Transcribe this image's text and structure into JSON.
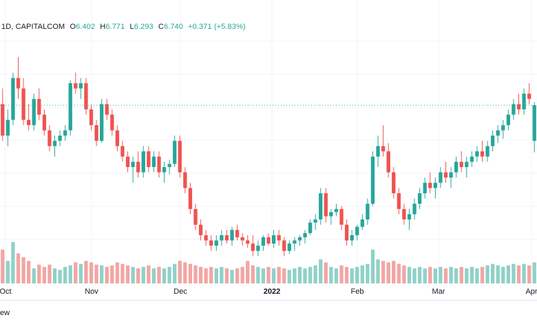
{
  "legend": {
    "symbol": "1D, CAPITALCOM",
    "o_label": "O",
    "o_value": "6.402",
    "h_label": "H",
    "h_value": "6.771",
    "l_label": "L",
    "l_value": "6.293",
    "c_label": "C",
    "c_value": "6.740",
    "change": "+0.371 (+5.83%)"
  },
  "colors": {
    "up": "#26a69a",
    "down": "#ef5350",
    "vol_up": "#8fd1c8",
    "vol_down": "#f2a6a3",
    "dotted_line": "#26a69a",
    "grid": "#f0f3fa"
  },
  "bottom": {
    "link_text": "ew"
  },
  "chart_data": {
    "type": "candlestick",
    "x_tick_labels": [
      "Oct",
      "Nov",
      "Dec",
      "2022",
      "Feb",
      "Mar",
      "Apr"
    ],
    "bold_tick": "2022",
    "last_close": 6.74,
    "candles": [
      [
        6.75,
        6.9,
        6.4,
        6.45,
        45
      ],
      [
        6.45,
        6.7,
        6.35,
        6.6,
        30
      ],
      [
        6.6,
        7.05,
        6.55,
        7.0,
        55
      ],
      [
        7.0,
        7.2,
        6.8,
        6.9,
        40
      ],
      [
        6.9,
        7.0,
        6.55,
        6.6,
        35
      ],
      [
        6.6,
        6.75,
        6.5,
        6.55,
        30
      ],
      [
        6.55,
        6.85,
        6.5,
        6.8,
        20
      ],
      [
        6.8,
        6.9,
        6.6,
        6.65,
        25
      ],
      [
        6.65,
        6.7,
        6.45,
        6.5,
        22
      ],
      [
        6.5,
        6.55,
        6.3,
        6.35,
        25
      ],
      [
        6.35,
        6.45,
        6.25,
        6.4,
        20
      ],
      [
        6.4,
        6.5,
        6.35,
        6.45,
        18
      ],
      [
        6.45,
        6.55,
        6.4,
        6.5,
        22
      ],
      [
        6.5,
        6.98,
        6.45,
        6.95,
        24
      ],
      [
        6.95,
        7.05,
        6.85,
        6.9,
        28
      ],
      [
        6.9,
        7.0,
        6.8,
        6.95,
        26
      ],
      [
        6.95,
        7.0,
        6.65,
        6.7,
        30
      ],
      [
        6.7,
        6.75,
        6.5,
        6.55,
        28
      ],
      [
        6.55,
        6.6,
        6.35,
        6.4,
        25
      ],
      [
        6.4,
        6.8,
        6.38,
        6.75,
        24
      ],
      [
        6.75,
        6.8,
        6.6,
        6.65,
        22
      ],
      [
        6.65,
        6.7,
        6.45,
        6.5,
        24
      ],
      [
        6.5,
        6.55,
        6.3,
        6.35,
        28
      ],
      [
        6.35,
        6.4,
        6.2,
        6.25,
        26
      ],
      [
        6.25,
        6.3,
        6.1,
        6.15,
        24
      ],
      [
        6.15,
        6.25,
        6.0,
        6.2,
        22
      ],
      [
        6.2,
        6.3,
        6.05,
        6.1,
        20
      ],
      [
        6.1,
        6.35,
        6.05,
        6.3,
        22
      ],
      [
        6.3,
        6.35,
        6.1,
        6.15,
        24
      ],
      [
        6.15,
        6.3,
        6.1,
        6.25,
        20
      ],
      [
        6.25,
        6.3,
        6.05,
        6.1,
        22
      ],
      [
        6.1,
        6.2,
        6.0,
        6.15,
        20
      ],
      [
        6.15,
        6.22,
        6.08,
        6.18,
        22
      ],
      [
        6.18,
        6.45,
        6.15,
        6.4,
        26
      ],
      [
        6.4,
        6.45,
        6.05,
        6.1,
        30
      ],
      [
        6.1,
        6.15,
        5.9,
        5.95,
        28
      ],
      [
        5.95,
        6.0,
        5.7,
        5.75,
        26
      ],
      [
        5.75,
        5.8,
        5.55,
        5.6,
        24
      ],
      [
        5.6,
        5.65,
        5.45,
        5.5,
        22
      ],
      [
        5.5,
        5.55,
        5.4,
        5.45,
        20
      ],
      [
        5.45,
        5.5,
        5.35,
        5.4,
        22
      ],
      [
        5.4,
        5.5,
        5.35,
        5.45,
        20
      ],
      [
        5.45,
        5.55,
        5.4,
        5.5,
        22
      ],
      [
        5.5,
        5.55,
        5.42,
        5.45,
        20
      ],
      [
        5.45,
        5.58,
        5.4,
        5.55,
        18
      ],
      [
        5.55,
        5.6,
        5.45,
        5.48,
        20
      ],
      [
        5.48,
        5.52,
        5.4,
        5.45,
        22
      ],
      [
        5.45,
        5.5,
        5.38,
        5.42,
        30
      ],
      [
        5.42,
        5.5,
        5.3,
        5.35,
        24
      ],
      [
        5.35,
        5.45,
        5.3,
        5.4,
        22
      ],
      [
        5.4,
        5.5,
        5.35,
        5.48,
        20
      ],
      [
        5.48,
        5.52,
        5.4,
        5.42,
        22
      ],
      [
        5.42,
        5.55,
        5.38,
        5.5,
        20
      ],
      [
        5.5,
        5.55,
        5.4,
        5.45,
        22
      ],
      [
        5.45,
        5.48,
        5.3,
        5.35,
        20
      ],
      [
        5.35,
        5.45,
        5.32,
        5.42,
        18
      ],
      [
        5.42,
        5.48,
        5.35,
        5.45,
        20
      ],
      [
        5.45,
        5.5,
        5.4,
        5.48,
        22
      ],
      [
        5.48,
        5.55,
        5.42,
        5.52,
        20
      ],
      [
        5.52,
        5.65,
        5.5,
        5.62,
        22
      ],
      [
        5.62,
        5.7,
        5.55,
        5.65,
        24
      ],
      [
        5.65,
        5.95,
        5.6,
        5.9,
        32
      ],
      [
        5.9,
        5.95,
        5.62,
        5.68,
        28
      ],
      [
        5.68,
        5.75,
        5.6,
        5.72,
        22
      ],
      [
        5.72,
        5.8,
        5.68,
        5.75,
        20
      ],
      [
        5.75,
        5.78,
        5.55,
        5.6,
        24
      ],
      [
        5.6,
        5.65,
        5.4,
        5.45,
        22
      ],
      [
        5.45,
        5.55,
        5.4,
        5.5,
        20
      ],
      [
        5.5,
        5.6,
        5.45,
        5.58,
        22
      ],
      [
        5.58,
        5.7,
        5.55,
        5.65,
        24
      ],
      [
        5.65,
        5.85,
        5.6,
        5.8,
        26
      ],
      [
        5.8,
        6.3,
        5.78,
        6.25,
        45
      ],
      [
        6.25,
        6.45,
        6.15,
        6.35,
        32
      ],
      [
        6.35,
        6.55,
        6.25,
        6.3,
        30
      ],
      [
        6.3,
        6.38,
        6.05,
        6.1,
        28
      ],
      [
        6.1,
        6.15,
        5.85,
        5.9,
        30
      ],
      [
        5.9,
        5.95,
        5.7,
        5.75,
        26
      ],
      [
        5.75,
        5.8,
        5.6,
        5.65,
        24
      ],
      [
        5.65,
        5.75,
        5.55,
        5.7,
        22
      ],
      [
        5.7,
        5.85,
        5.65,
        5.8,
        20
      ],
      [
        5.8,
        5.95,
        5.75,
        5.9,
        22
      ],
      [
        5.9,
        6.05,
        5.85,
        6.0,
        20
      ],
      [
        6.0,
        6.1,
        5.9,
        5.95,
        22
      ],
      [
        5.95,
        6.05,
        5.85,
        6.0,
        20
      ],
      [
        6.0,
        6.15,
        5.95,
        6.1,
        22
      ],
      [
        6.1,
        6.2,
        6.0,
        6.05,
        20
      ],
      [
        6.05,
        6.15,
        5.95,
        6.1,
        22
      ],
      [
        6.1,
        6.25,
        6.05,
        6.2,
        20
      ],
      [
        6.2,
        6.3,
        6.1,
        6.15,
        22
      ],
      [
        6.15,
        6.25,
        6.05,
        6.2,
        20
      ],
      [
        6.2,
        6.3,
        6.15,
        6.25,
        22
      ],
      [
        6.25,
        6.35,
        6.2,
        6.3,
        20
      ],
      [
        6.3,
        6.4,
        6.2,
        6.25,
        22
      ],
      [
        6.25,
        6.4,
        6.2,
        6.35,
        24
      ],
      [
        6.35,
        6.5,
        6.3,
        6.45,
        26
      ],
      [
        6.45,
        6.55,
        6.38,
        6.5,
        24
      ],
      [
        6.5,
        6.6,
        6.42,
        6.55,
        22
      ],
      [
        6.55,
        6.7,
        6.5,
        6.65,
        24
      ],
      [
        6.65,
        6.8,
        6.6,
        6.75,
        26
      ],
      [
        6.75,
        6.85,
        6.65,
        6.7,
        24
      ],
      [
        6.7,
        6.9,
        6.65,
        6.85,
        26
      ],
      [
        6.85,
        6.95,
        6.75,
        6.8,
        24
      ],
      [
        6.4,
        6.77,
        6.29,
        6.74,
        28
      ]
    ]
  }
}
